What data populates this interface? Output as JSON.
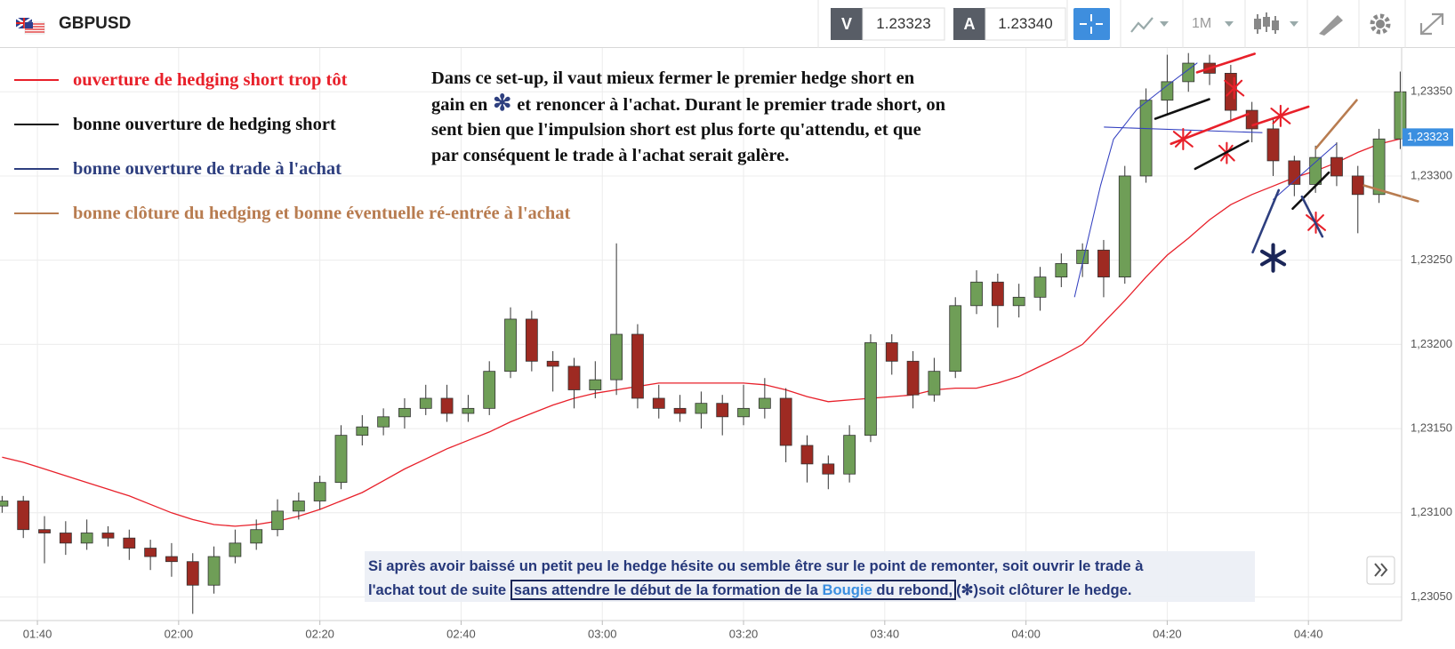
{
  "toolbar": {
    "symbol": "GBPUSD",
    "bid_label": "V",
    "bid": "1.23323",
    "ask_label": "A",
    "ask": "1.23340",
    "timeframe": "1M"
  },
  "chart_data": {
    "type": "candlestick",
    "x": [
      95,
      98,
      101,
      104,
      107,
      110,
      113,
      116,
      119,
      122,
      125,
      128,
      131,
      134,
      137,
      140,
      143,
      146,
      149,
      152,
      155,
      158,
      161,
      164,
      167,
      170,
      173,
      176,
      179,
      182,
      185,
      188,
      191,
      194,
      197,
      200,
      203,
      206,
      209,
      212,
      215,
      218,
      221,
      224,
      227,
      230,
      233,
      236,
      239,
      242,
      245,
      248,
      251,
      254,
      257,
      260,
      263,
      266,
      269,
      272,
      275,
      278,
      281,
      284,
      287,
      290,
      293
    ],
    "ohlc": [
      [
        1.23104,
        1.2311,
        1.231,
        1.23107
      ],
      [
        1.23107,
        1.2311,
        1.23085,
        1.2309
      ],
      [
        1.2309,
        1.23098,
        1.2307,
        1.23088
      ],
      [
        1.23088,
        1.23095,
        1.23075,
        1.23082
      ],
      [
        1.23082,
        1.23096,
        1.23078,
        1.23088
      ],
      [
        1.23088,
        1.23092,
        1.2308,
        1.23085
      ],
      [
        1.23085,
        1.2309,
        1.23072,
        1.23079
      ],
      [
        1.23079,
        1.23084,
        1.23066,
        1.23074
      ],
      [
        1.23074,
        1.23082,
        1.23062,
        1.23071
      ],
      [
        1.23071,
        1.23076,
        1.2304,
        1.23057
      ],
      [
        1.23057,
        1.2308,
        1.23052,
        1.23074
      ],
      [
        1.23074,
        1.2309,
        1.2307,
        1.23082
      ],
      [
        1.23082,
        1.23096,
        1.23078,
        1.2309
      ],
      [
        1.2309,
        1.23108,
        1.23086,
        1.23101
      ],
      [
        1.23101,
        1.23112,
        1.23096,
        1.23107
      ],
      [
        1.23107,
        1.23122,
        1.23102,
        1.23118
      ],
      [
        1.23118,
        1.23152,
        1.23114,
        1.23146
      ],
      [
        1.23146,
        1.23158,
        1.2314,
        1.23151
      ],
      [
        1.23151,
        1.23162,
        1.23146,
        1.23157
      ],
      [
        1.23157,
        1.23168,
        1.2315,
        1.23162
      ],
      [
        1.23162,
        1.23176,
        1.23158,
        1.23168
      ],
      [
        1.23168,
        1.23176,
        1.23154,
        1.23159
      ],
      [
        1.23159,
        1.2317,
        1.23154,
        1.23162
      ],
      [
        1.23162,
        1.2319,
        1.23158,
        1.23184
      ],
      [
        1.23184,
        1.23222,
        1.2318,
        1.23215
      ],
      [
        1.23215,
        1.2322,
        1.23184,
        1.2319
      ],
      [
        1.2319,
        1.23196,
        1.23172,
        1.23187
      ],
      [
        1.23187,
        1.23192,
        1.23162,
        1.23173
      ],
      [
        1.23173,
        1.2319,
        1.23168,
        1.23179
      ],
      [
        1.23179,
        1.2326,
        1.2317,
        1.23206
      ],
      [
        1.23206,
        1.23212,
        1.23162,
        1.23168
      ],
      [
        1.23168,
        1.23176,
        1.23156,
        1.23162
      ],
      [
        1.23162,
        1.2317,
        1.23154,
        1.23159
      ],
      [
        1.23159,
        1.23172,
        1.2315,
        1.23165
      ],
      [
        1.23165,
        1.2317,
        1.23146,
        1.23157
      ],
      [
        1.23157,
        1.23176,
        1.23152,
        1.23162
      ],
      [
        1.23162,
        1.2318,
        1.23156,
        1.23168
      ],
      [
        1.23168,
        1.23174,
        1.2313,
        1.2314
      ],
      [
        1.2314,
        1.23146,
        1.23118,
        1.23129
      ],
      [
        1.23129,
        1.23134,
        1.23114,
        1.23123
      ],
      [
        1.23123,
        1.23152,
        1.23118,
        1.23146
      ],
      [
        1.23146,
        1.23206,
        1.23142,
        1.23201
      ],
      [
        1.23201,
        1.23206,
        1.23182,
        1.2319
      ],
      [
        1.2319,
        1.23196,
        1.23162,
        1.2317
      ],
      [
        1.2317,
        1.23192,
        1.23166,
        1.23184
      ],
      [
        1.23184,
        1.23228,
        1.2318,
        1.23223
      ],
      [
        1.23223,
        1.23244,
        1.23218,
        1.23237
      ],
      [
        1.23237,
        1.23242,
        1.2321,
        1.23223
      ],
      [
        1.23223,
        1.23236,
        1.23216,
        1.23228
      ],
      [
        1.23228,
        1.23246,
        1.2322,
        1.2324
      ],
      [
        1.2324,
        1.23254,
        1.23234,
        1.23248
      ],
      [
        1.23248,
        1.2326,
        1.2324,
        1.23256
      ],
      [
        1.23256,
        1.23262,
        1.23228,
        1.2324
      ],
      [
        1.2324,
        1.23306,
        1.23236,
        1.233
      ],
      [
        1.233,
        1.23352,
        1.23296,
        1.23345
      ],
      [
        1.23345,
        1.23372,
        1.23336,
        1.23356
      ],
      [
        1.23356,
        1.23373,
        1.2335,
        1.23367
      ],
      [
        1.23367,
        1.23372,
        1.23354,
        1.23361
      ],
      [
        1.23361,
        1.23366,
        1.23332,
        1.23339
      ],
      [
        1.23339,
        1.23344,
        1.2332,
        1.23328
      ],
      [
        1.23328,
        1.23334,
        1.233,
        1.23309
      ],
      [
        1.23309,
        1.23312,
        1.23288,
        1.23295
      ],
      [
        1.23295,
        1.23318,
        1.2329,
        1.23311
      ],
      [
        1.23311,
        1.2332,
        1.23294,
        1.233
      ],
      [
        1.233,
        1.23306,
        1.23266,
        1.23289
      ],
      [
        1.23289,
        1.23328,
        1.23284,
        1.23322
      ],
      [
        1.23322,
        1.23362,
        1.23316,
        1.2335
      ]
    ],
    "up_color": "#6f9e57",
    "down_color": "#9e2a22",
    "moving_average": {
      "color": "#e8202a",
      "values": [
        1.23133,
        1.2313,
        1.23126,
        1.23122,
        1.23118,
        1.23114,
        1.2311,
        1.23105,
        1.231,
        1.23096,
        1.23093,
        1.23092,
        1.23093,
        1.23095,
        1.23098,
        1.23102,
        1.23107,
        1.23112,
        1.23119,
        1.23126,
        1.23132,
        1.23138,
        1.23143,
        1.23148,
        1.23154,
        1.23159,
        1.23164,
        1.23168,
        1.23171,
        1.23173,
        1.23175,
        1.23177,
        1.23177,
        1.23177,
        1.23177,
        1.23177,
        1.23176,
        1.23173,
        1.23169,
        1.23166,
        1.23167,
        1.23168,
        1.23169,
        1.2317,
        1.23173,
        1.23174,
        1.23174,
        1.23177,
        1.23181,
        1.23187,
        1.23193,
        1.232,
        1.23213,
        1.23226,
        1.2324,
        1.23253,
        1.23263,
        1.23274,
        1.23283,
        1.23289,
        1.23294,
        1.23299,
        1.23303,
        1.23308,
        1.23314,
        1.23319,
        1.23322
      ]
    },
    "xlim": [
      94.7,
      293.2
    ],
    "xticks": [
      {
        "value": 100,
        "label": "01:40"
      },
      {
        "value": 120,
        "label": "02:00"
      },
      {
        "value": 140,
        "label": "02:20"
      },
      {
        "value": 160,
        "label": "02:40"
      },
      {
        "value": 180,
        "label": "03:00"
      },
      {
        "value": 200,
        "label": "03:20"
      },
      {
        "value": 220,
        "label": "03:40"
      },
      {
        "value": 240,
        "label": "04:00"
      },
      {
        "value": 260,
        "label": "04:20"
      },
      {
        "value": 280,
        "label": "04:40"
      }
    ],
    "ylim": [
      1.23036,
      1.23376
    ],
    "yticks": [
      {
        "value": 1.2305,
        "label": "1,23050"
      },
      {
        "value": 1.231,
        "label": "1,23100"
      },
      {
        "value": 1.2315,
        "label": "1,23150"
      },
      {
        "value": 1.232,
        "label": "1,23200"
      },
      {
        "value": 1.2325,
        "label": "1,23250"
      },
      {
        "value": 1.233,
        "label": "1,23300"
      },
      {
        "value": 1.2335,
        "label": "1,23350"
      }
    ],
    "grid": true,
    "last_price": {
      "value": 1.23323,
      "label": "1,23323",
      "color": "#3b8fe0"
    },
    "annotation_legend": [
      {
        "label": "ouverture de hedging short trop tôt",
        "color": "#e8202a"
      },
      {
        "label": "bonne ouverture de hedging short",
        "color": "#111111"
      },
      {
        "label": "bonne ouverture de trade à l'achat",
        "color": "#2e3f7f"
      },
      {
        "label": "bonne clôture du hedging et bonne éventuelle ré-entrée à l'achat",
        "color": "#b87c50"
      }
    ],
    "note": {
      "line1": "Dans ce set-up, il vaut mieux fermer le premier hedge short en",
      "line2_start": "gain en",
      "symbol": "✻",
      "line2_end": "et renoncer à l'achat. Durant le premier trade short, on",
      "line3": "sent bien que l'impulsion short est plus forte qu'attendu, et que",
      "line4": "par conséquent le trade à l'achat serait galère."
    },
    "box": {
      "line1": "Si après avoir baissé un petit peu le hedge hésite ou semble être sur le point de remonter, soit ouvrir le  trade à",
      "line2_a": "l'achat tout de suite",
      "line2_boxed": "sans attendre le début de la formation de la",
      "line2_word": "Bougie",
      "line2_boxed_end": "du rebond,",
      "line2_symbol": "(✻)",
      "line2_end": "soit clôturer le  hedge."
    }
  }
}
